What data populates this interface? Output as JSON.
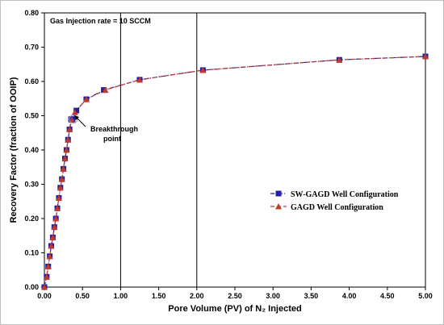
{
  "chart_data": {
    "type": "line",
    "title": "",
    "xlabel": "Pore Volume (PV) of N₂ Injected",
    "ylabel": "Recovery Factor (fraction of OOIP)",
    "xlim": [
      0,
      5
    ],
    "ylim": [
      0,
      0.8
    ],
    "x_ticks": [
      "0.00",
      "0.50",
      "1.00",
      "1.50",
      "2.00",
      "2.50",
      "3.00",
      "3.50",
      "4.00",
      "4.50",
      "5.00"
    ],
    "y_ticks": [
      "0.00",
      "0.10",
      "0.20",
      "0.30",
      "0.40",
      "0.50",
      "0.60",
      "0.70",
      "0.80"
    ],
    "grid": false,
    "legend_position": "middle-right",
    "annotations": {
      "injection_rate": "Gas Injection rate = 10 SCCM",
      "breakthrough": [
        "Breakthrough",
        "point"
      ]
    },
    "breakthrough_point": {
      "x": 0.38,
      "y": 0.49
    },
    "vertical_lines_x": [
      1.0,
      2.0
    ],
    "series": [
      {
        "name": "SW-GAGD Well Configuration",
        "color": "#1f1fa8",
        "marker": "square",
        "line_style": "dash-dot",
        "x": [
          0.0,
          0.03,
          0.05,
          0.07,
          0.09,
          0.11,
          0.13,
          0.15,
          0.17,
          0.19,
          0.21,
          0.23,
          0.25,
          0.27,
          0.29,
          0.31,
          0.33,
          0.35,
          0.37,
          0.42,
          0.55,
          0.78,
          1.25,
          2.08,
          3.87,
          5.0
        ],
        "y": [
          0.0,
          0.03,
          0.06,
          0.09,
          0.12,
          0.145,
          0.175,
          0.2,
          0.23,
          0.26,
          0.29,
          0.315,
          0.345,
          0.375,
          0.4,
          0.43,
          0.46,
          0.49,
          0.49,
          0.515,
          0.548,
          0.575,
          0.605,
          0.633,
          0.663,
          0.673
        ]
      },
      {
        "name": "GAGD Well Configuration",
        "color": "#c0392b",
        "marker": "triangle",
        "line_style": "dashed",
        "x": [
          0.0,
          0.03,
          0.05,
          0.07,
          0.09,
          0.11,
          0.13,
          0.15,
          0.17,
          0.19,
          0.21,
          0.23,
          0.25,
          0.27,
          0.29,
          0.31,
          0.33,
          0.36,
          0.4,
          0.55,
          0.8,
          1.25,
          2.08,
          3.87,
          5.0
        ],
        "y": [
          0.0,
          0.03,
          0.06,
          0.09,
          0.12,
          0.145,
          0.175,
          0.2,
          0.23,
          0.26,
          0.29,
          0.315,
          0.345,
          0.375,
          0.4,
          0.43,
          0.46,
          0.488,
          0.51,
          0.548,
          0.575,
          0.605,
          0.633,
          0.663,
          0.673
        ]
      }
    ]
  }
}
